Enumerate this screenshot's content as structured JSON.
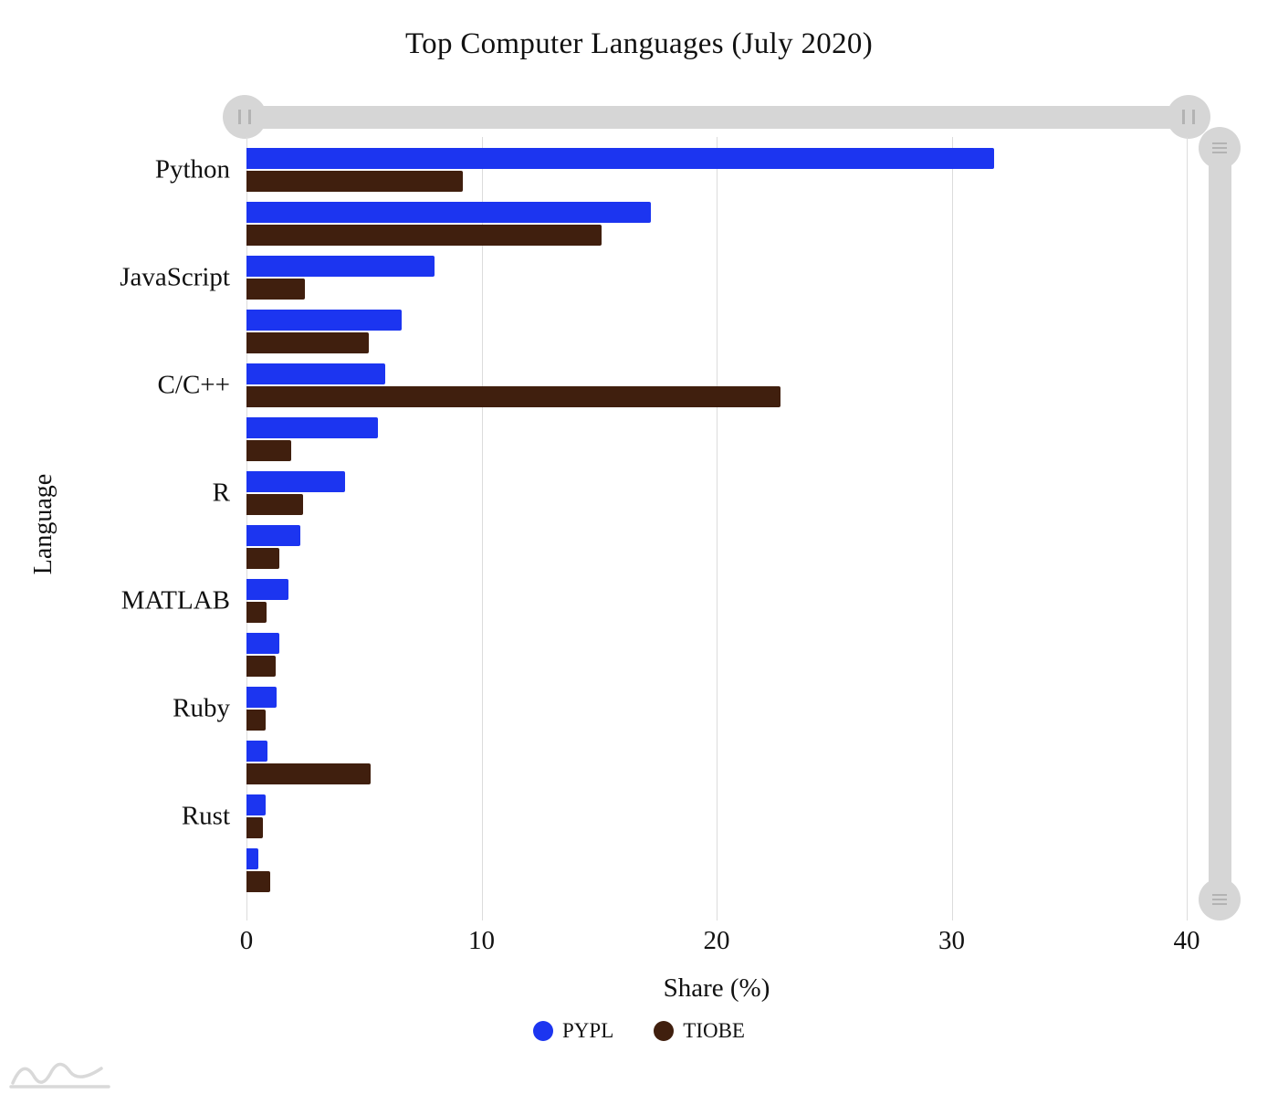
{
  "title": "Top Computer Languages (July 2020)",
  "chart_data": {
    "type": "bar",
    "orientation": "horizontal",
    "title": "Top Computer Languages (July 2020)",
    "xlabel": "Share (%)",
    "ylabel": "Language",
    "xlim": [
      0,
      40
    ],
    "xticks": [
      0,
      10,
      20,
      30,
      40
    ],
    "grid": true,
    "legend_position": "bottom",
    "categories": [
      "Python",
      "",
      "JavaScript",
      "",
      "C/C++",
      "",
      "R",
      "",
      "MATLAB",
      "",
      "Ruby",
      "",
      "Rust",
      ""
    ],
    "series": [
      {
        "name": "PYPL",
        "color": "#1c35f0",
        "values": [
          31.8,
          17.2,
          8.0,
          6.6,
          5.9,
          5.6,
          4.2,
          2.3,
          1.8,
          1.4,
          1.3,
          0.9,
          0.8,
          0.5
        ]
      },
      {
        "name": "TIOBE",
        "color": "#401f0e",
        "values": [
          9.2,
          15.1,
          2.5,
          5.2,
          22.7,
          1.9,
          2.4,
          1.4,
          0.85,
          1.25,
          0.8,
          5.3,
          0.7,
          1.0
        ]
      }
    ]
  },
  "ui": {
    "grid_color": "#dcdcdc",
    "slider_color": "#d6d6d6"
  }
}
